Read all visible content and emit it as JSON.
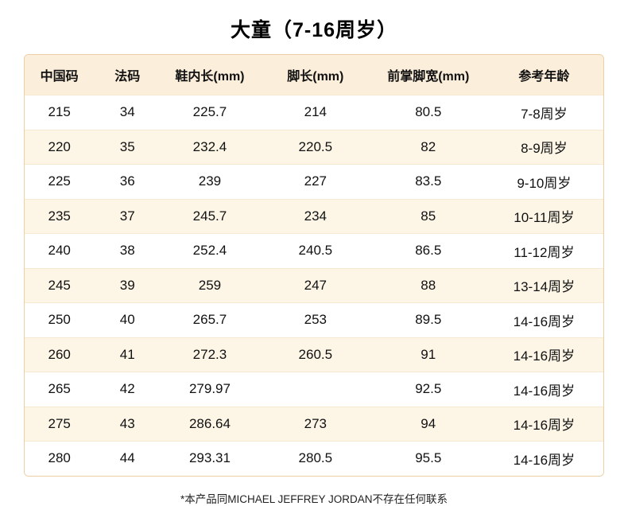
{
  "title": "大童（7-16周岁）",
  "footnote": "*本产品同MICHAEL JEFFREY JORDAN不存在任何联系",
  "colors": {
    "table_border": "#eccfa3",
    "header_bg": "#fbeedb",
    "alt_row_bg": "#fdf6e7",
    "row_line": "#f6e9d2"
  },
  "table": {
    "headers": [
      "中国码",
      "法码",
      "鞋内长(mm)",
      "脚长(mm)",
      "前掌脚宽(mm)",
      "参考年龄"
    ],
    "col_widths": [
      "12%",
      "11.5%",
      "17%",
      "19.5%",
      "19.5%",
      "20.5%"
    ],
    "rows": [
      [
        "215",
        "34",
        "225.7",
        "214",
        "80.5",
        "7-8周岁"
      ],
      [
        "220",
        "35",
        "232.4",
        "220.5",
        "82",
        "8-9周岁"
      ],
      [
        "225",
        "36",
        "239",
        "227",
        "83.5",
        "9-10周岁"
      ],
      [
        "235",
        "37",
        "245.7",
        "234",
        "85",
        "10-11周岁"
      ],
      [
        "240",
        "38",
        "252.4",
        "240.5",
        "86.5",
        "11-12周岁"
      ],
      [
        "245",
        "39",
        "259",
        "247",
        "88",
        "13-14周岁"
      ],
      [
        "250",
        "40",
        "265.7",
        "253",
        "89.5",
        "14-16周岁"
      ],
      [
        "260",
        "41",
        "272.3",
        "260.5",
        "91",
        "14-16周岁"
      ],
      [
        "265",
        "42",
        "279.97",
        "",
        "92.5",
        "14-16周岁"
      ],
      [
        "275",
        "43",
        "286.64",
        "273",
        "94",
        "14-16周岁"
      ],
      [
        "280",
        "44",
        "293.31",
        "280.5",
        "95.5",
        "14-16周岁"
      ]
    ]
  },
  "chart_data": {
    "type": "table",
    "title": "大童（7-16周岁）",
    "columns": [
      "中国码",
      "法码",
      "鞋内长(mm)",
      "脚长(mm)",
      "前掌脚宽(mm)",
      "参考年龄"
    ],
    "rows": [
      [
        "215",
        "34",
        "225.7",
        "214",
        "80.5",
        "7-8周岁"
      ],
      [
        "220",
        "35",
        "232.4",
        "220.5",
        "82",
        "8-9周岁"
      ],
      [
        "225",
        "36",
        "239",
        "227",
        "83.5",
        "9-10周岁"
      ],
      [
        "235",
        "37",
        "245.7",
        "234",
        "85",
        "10-11周岁"
      ],
      [
        "240",
        "38",
        "252.4",
        "240.5",
        "86.5",
        "11-12周岁"
      ],
      [
        "245",
        "39",
        "259",
        "247",
        "88",
        "13-14周岁"
      ],
      [
        "250",
        "40",
        "265.7",
        "253",
        "89.5",
        "14-16周岁"
      ],
      [
        "260",
        "41",
        "272.3",
        "260.5",
        "91",
        "14-16周岁"
      ],
      [
        "265",
        "42",
        "279.97",
        "",
        "92.5",
        "14-16周岁"
      ],
      [
        "275",
        "43",
        "286.64",
        "273",
        "94",
        "14-16周岁"
      ],
      [
        "280",
        "44",
        "293.31",
        "280.5",
        "95.5",
        "14-16周岁"
      ]
    ],
    "annotations": [
      "*本产品同MICHAEL JEFFREY JORDAN不存在任何联系"
    ]
  }
}
